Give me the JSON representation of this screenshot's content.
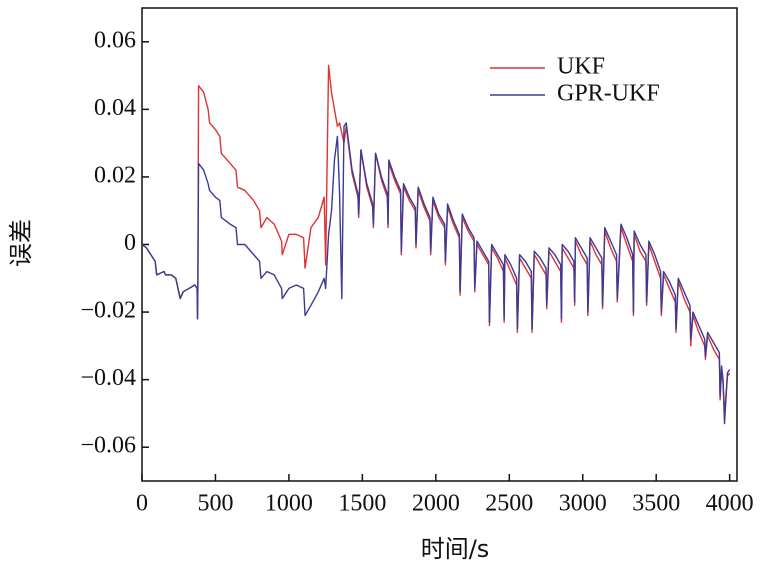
{
  "chart_data": {
    "type": "line",
    "xlabel": "时间/s",
    "ylabel": "误差",
    "xlim": [
      0,
      4050
    ],
    "ylim": [
      -0.07,
      0.07
    ],
    "xticks": [
      0,
      500,
      1000,
      1500,
      2000,
      2500,
      3000,
      3500,
      4000
    ],
    "yticks": [
      {
        "value": -0.06,
        "label": "−0.06"
      },
      {
        "value": -0.04,
        "label": "−0.04"
      },
      {
        "value": -0.02,
        "label": "−0.02"
      },
      0,
      {
        "value": 0.02,
        "label": "0.02"
      },
      {
        "value": 0.04,
        "label": "0.04"
      },
      {
        "value": 0.06,
        "label": "0.06"
      }
    ],
    "legend": "upper right",
    "x": [
      0,
      30,
      60,
      90,
      100,
      150,
      160,
      200,
      230,
      260,
      280,
      320,
      360,
      375,
      378,
      380,
      385,
      420,
      450,
      460,
      500,
      530,
      540,
      600,
      640,
      650,
      700,
      760,
      800,
      810,
      850,
      900,
      950,
      955,
      1000,
      1050,
      1100,
      1110,
      1150,
      1200,
      1240,
      1250,
      1270,
      1290,
      1310,
      1330,
      1345,
      1360,
      1375,
      1390,
      1430,
      1470,
      1475,
      1490,
      1530,
      1570,
      1575,
      1590,
      1630,
      1670,
      1675,
      1680,
      1720,
      1760,
      1765,
      1780,
      1820,
      1860,
      1865,
      1880,
      1920,
      1960,
      1965,
      1980,
      2020,
      2060,
      2065,
      2080,
      2120,
      2160,
      2165,
      2180,
      2220,
      2260,
      2265,
      2280,
      2320,
      2360,
      2365,
      2380,
      2420,
      2460,
      2465,
      2470,
      2510,
      2550,
      2555,
      2570,
      2610,
      2650,
      2655,
      2670,
      2710,
      2750,
      2755,
      2770,
      2810,
      2850,
      2855,
      2860,
      2900,
      2940,
      2945,
      2950,
      2990,
      3030,
      3035,
      3050,
      3090,
      3130,
      3135,
      3150,
      3190,
      3230,
      3235,
      3260,
      3300,
      3340,
      3345,
      3350,
      3390,
      3430,
      3435,
      3450,
      3490,
      3530,
      3535,
      3550,
      3590,
      3630,
      3635,
      3650,
      3690,
      3730,
      3735,
      3750,
      3790,
      3830,
      3835,
      3850,
      3890,
      3930,
      3935,
      3945,
      3955,
      3965,
      3985,
      4000
    ],
    "series": [
      {
        "name": "UKF",
        "color": "#e03333",
        "values": [
          0,
          -0.001,
          -0.003,
          -0.005,
          -0.009,
          -0.008,
          -0.009,
          -0.009,
          -0.01,
          -0.016,
          -0.014,
          -0.013,
          -0.012,
          -0.013,
          -0.022,
          -0.014,
          0.047,
          0.045,
          0.04,
          0.036,
          0.034,
          0.032,
          0.027,
          0.024,
          0.022,
          0.017,
          0.016,
          0.013,
          0.01,
          0.005,
          0.008,
          0.006,
          0.001,
          -0.003,
          0.003,
          0.003,
          0.002,
          -0.007,
          0.005,
          0.008,
          0.014,
          -0.006,
          0.053,
          0.045,
          0.04,
          0.035,
          0.036,
          0.033,
          0.03,
          0.035,
          0.021,
          0.014,
          0.008,
          0.028,
          0.017,
          0.011,
          0.005,
          0.027,
          0.019,
          0.014,
          0.005,
          0.024,
          0.019,
          0.015,
          -0.003,
          0.017,
          0.013,
          0.01,
          -0.001,
          0.016,
          0.011,
          0.007,
          -0.003,
          0.013,
          0.008,
          0.005,
          -0.006,
          0.011,
          0.006,
          0.002,
          -0.015,
          0.008,
          0.004,
          0.001,
          -0.014,
          0.0,
          -0.003,
          -0.006,
          -0.024,
          -0.001,
          -0.004,
          -0.008,
          -0.023,
          -0.004,
          -0.008,
          -0.012,
          -0.026,
          -0.004,
          -0.007,
          -0.01,
          -0.026,
          -0.003,
          -0.006,
          -0.009,
          -0.019,
          -0.002,
          -0.005,
          -0.008,
          -0.023,
          -0.001,
          -0.004,
          -0.007,
          -0.018,
          0.001,
          -0.003,
          -0.006,
          -0.021,
          0.001,
          -0.003,
          -0.006,
          -0.019,
          0.004,
          -0.001,
          -0.005,
          -0.017,
          0.005,
          0.0,
          -0.005,
          -0.021,
          0.003,
          -0.002,
          -0.005,
          -0.018,
          0.0,
          -0.005,
          -0.01,
          -0.021,
          -0.009,
          -0.013,
          -0.017,
          -0.026,
          -0.011,
          -0.016,
          -0.02,
          -0.03,
          -0.021,
          -0.026,
          -0.03,
          -0.034,
          -0.027,
          -0.031,
          -0.034,
          -0.046,
          -0.037,
          -0.041,
          -0.05,
          -0.039,
          -0.038
        ]
      },
      {
        "name": "GPR-UKF",
        "color": "#3b3b96",
        "values": [
          0,
          -0.001,
          -0.003,
          -0.005,
          -0.009,
          -0.008,
          -0.009,
          -0.009,
          -0.01,
          -0.016,
          -0.014,
          -0.013,
          -0.012,
          -0.013,
          -0.022,
          -0.014,
          0.024,
          0.022,
          0.018,
          0.016,
          0.014,
          0.013,
          0.008,
          0.006,
          0.005,
          0.0,
          0.0,
          -0.003,
          -0.005,
          -0.01,
          -0.008,
          -0.009,
          -0.013,
          -0.016,
          -0.013,
          -0.012,
          -0.013,
          -0.021,
          -0.018,
          -0.014,
          -0.01,
          -0.013,
          0.003,
          0.01,
          0.025,
          0.032,
          0.015,
          -0.016,
          0.035,
          0.036,
          0.022,
          0.015,
          0.009,
          0.028,
          0.018,
          0.012,
          0.006,
          0.027,
          0.02,
          0.015,
          0.006,
          0.025,
          0.02,
          0.016,
          -0.002,
          0.018,
          0.014,
          0.011,
          0.0,
          0.017,
          0.012,
          0.008,
          -0.002,
          0.014,
          0.009,
          0.006,
          -0.005,
          0.012,
          0.007,
          0.003,
          -0.014,
          0.009,
          0.005,
          0.002,
          -0.013,
          0.001,
          -0.002,
          -0.005,
          -0.023,
          0.0,
          -0.003,
          -0.006,
          -0.022,
          -0.003,
          -0.006,
          -0.01,
          -0.025,
          -0.003,
          -0.005,
          -0.008,
          -0.025,
          -0.002,
          -0.004,
          -0.007,
          -0.018,
          -0.001,
          -0.003,
          -0.006,
          -0.022,
          0.0,
          -0.002,
          -0.005,
          -0.017,
          0.002,
          -0.001,
          -0.004,
          -0.02,
          0.002,
          -0.001,
          -0.004,
          -0.018,
          0.005,
          0.001,
          -0.003,
          -0.016,
          0.006,
          0.002,
          -0.003,
          -0.02,
          0.004,
          0.0,
          -0.003,
          -0.017,
          0.001,
          -0.003,
          -0.008,
          -0.02,
          -0.008,
          -0.011,
          -0.015,
          -0.025,
          -0.01,
          -0.014,
          -0.018,
          -0.028,
          -0.02,
          -0.024,
          -0.028,
          -0.033,
          -0.026,
          -0.029,
          -0.032,
          -0.045,
          -0.036,
          -0.04,
          -0.053,
          -0.038,
          -0.037
        ]
      }
    ]
  }
}
